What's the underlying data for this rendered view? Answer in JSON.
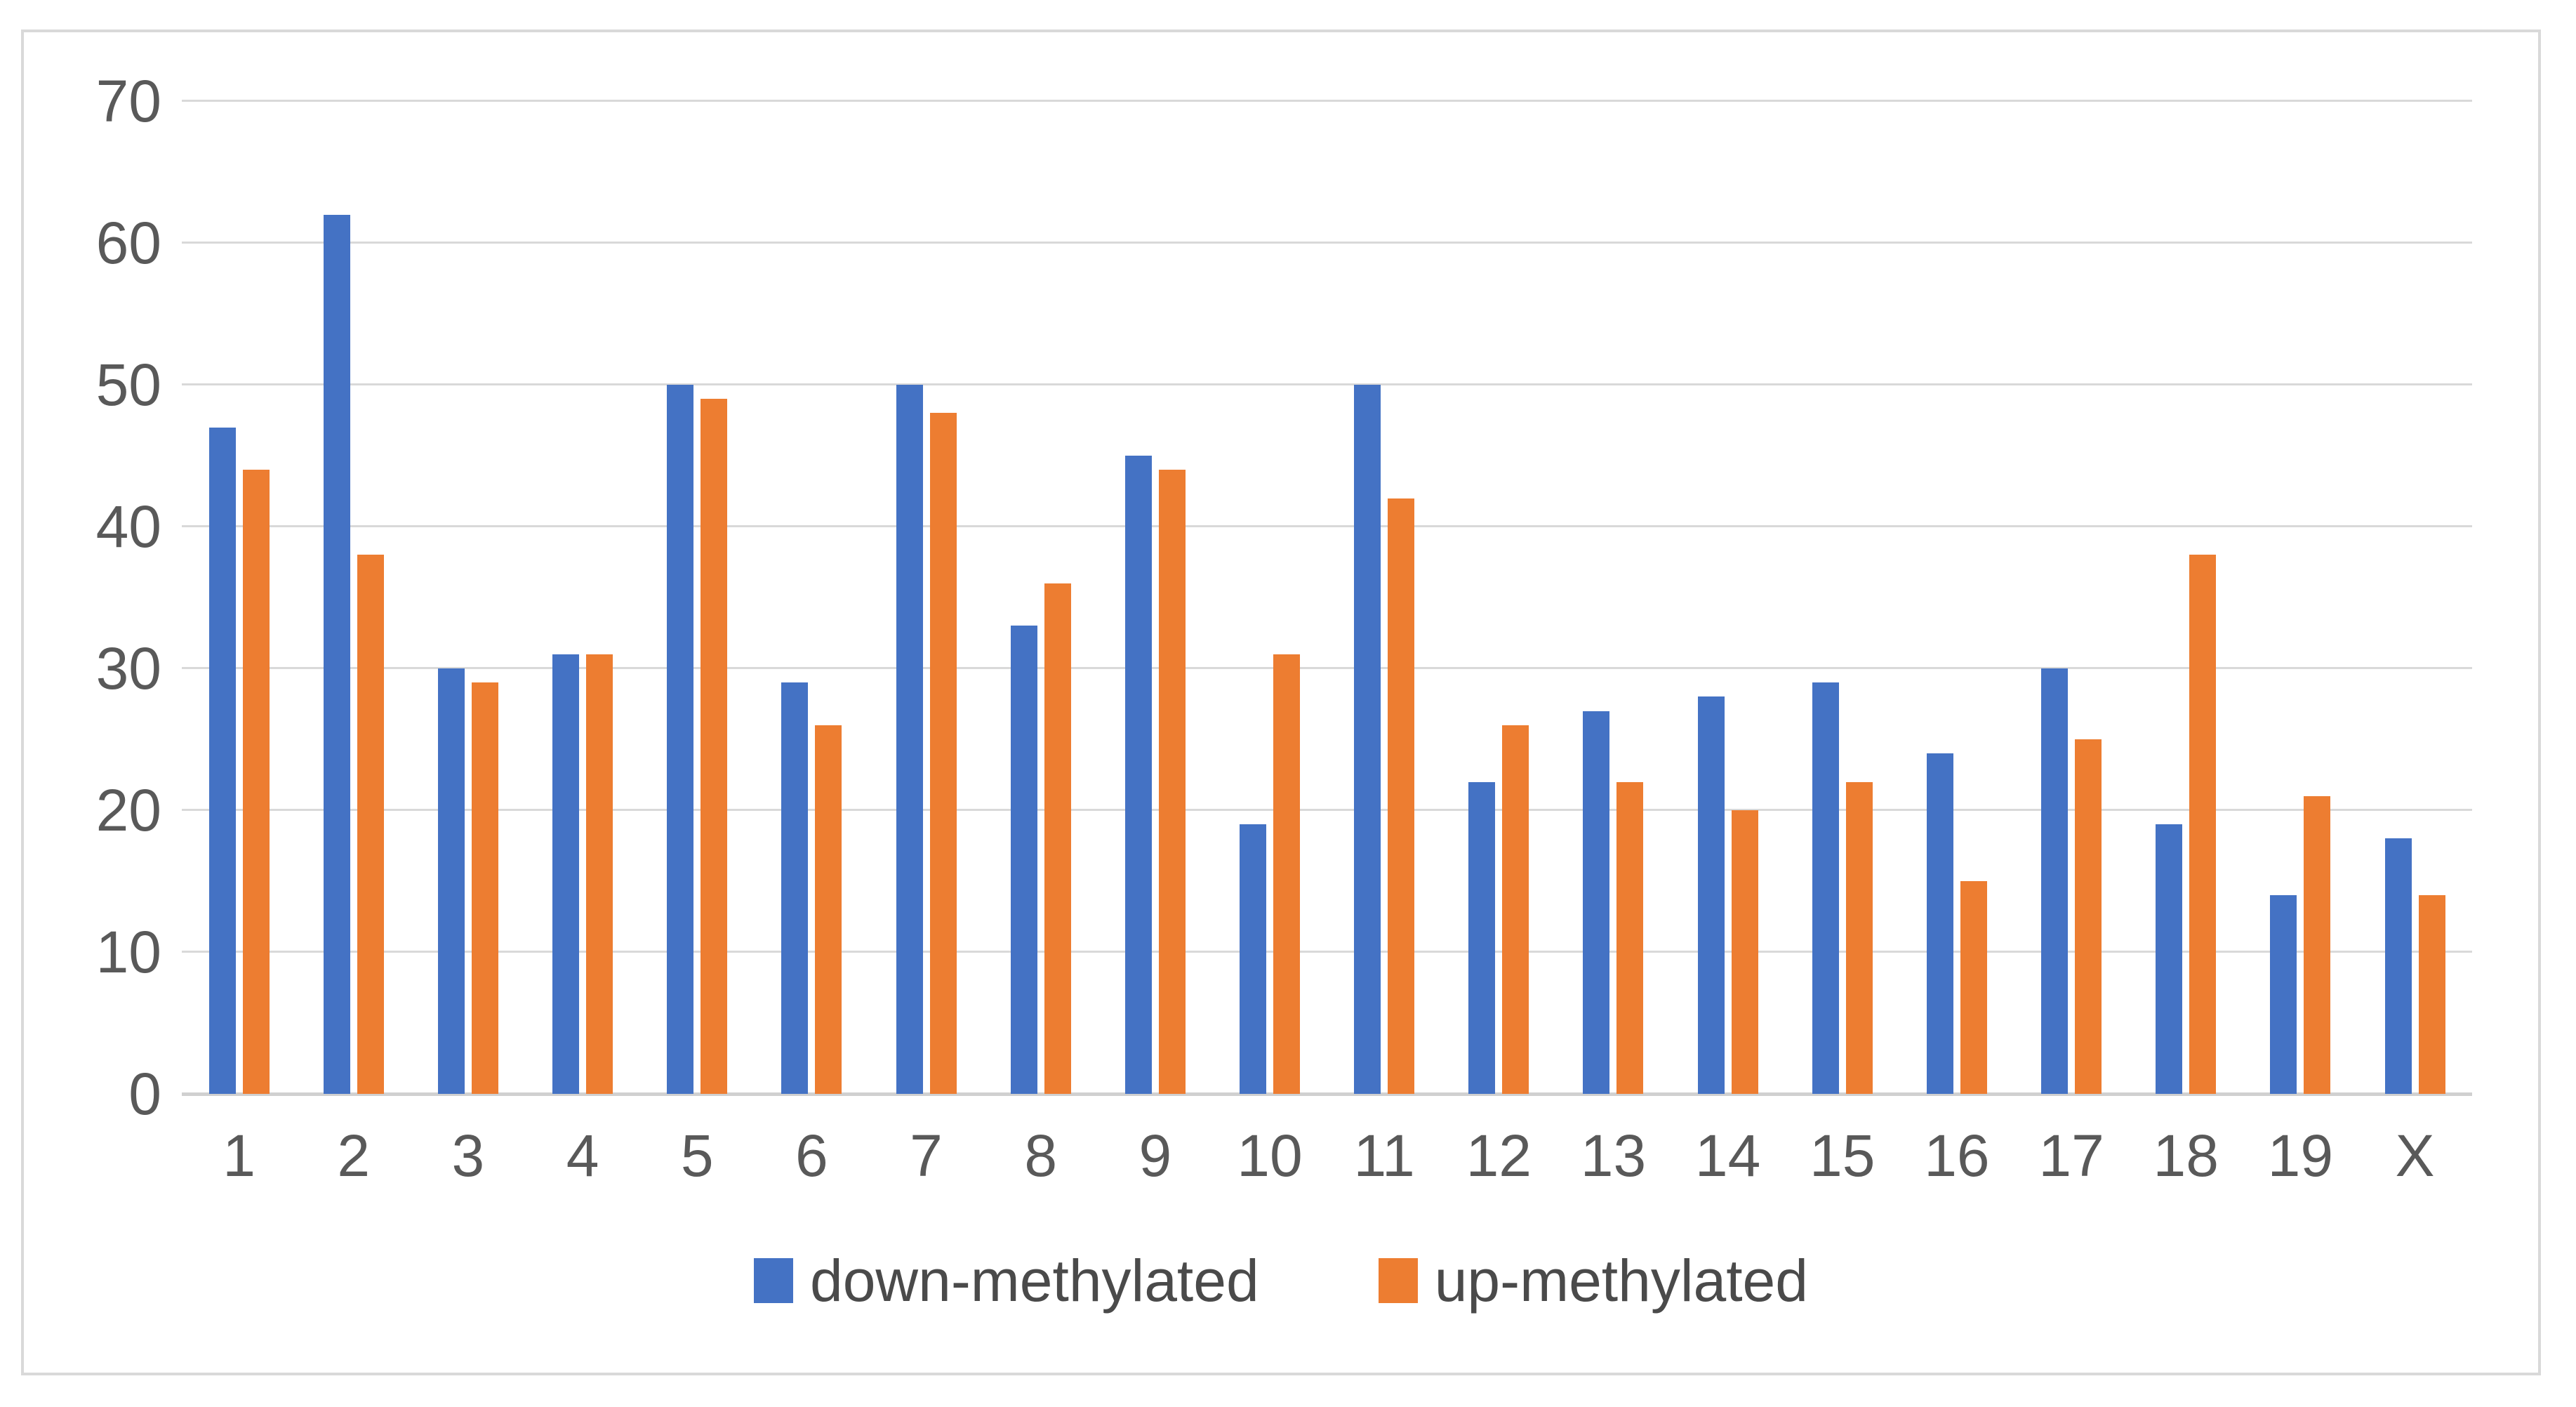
{
  "chart_data": {
    "type": "bar",
    "title": "",
    "xlabel": "",
    "ylabel": "",
    "categories": [
      "1",
      "2",
      "3",
      "4",
      "5",
      "6",
      "7",
      "8",
      "9",
      "10",
      "11",
      "12",
      "13",
      "14",
      "15",
      "16",
      "17",
      "18",
      "19",
      "X"
    ],
    "series": [
      {
        "name": "down-methylated",
        "color": "#4472C4",
        "values": [
          47,
          62,
          30,
          31,
          50,
          29,
          50,
          33,
          45,
          19,
          50,
          22,
          27,
          28,
          29,
          24,
          30,
          19,
          14,
          18
        ]
      },
      {
        "name": "up-methylated",
        "color": "#ED7D31",
        "values": [
          44,
          38,
          29,
          31,
          49,
          26,
          48,
          36,
          44,
          31,
          42,
          26,
          22,
          20,
          22,
          15,
          25,
          38,
          21,
          14
        ]
      }
    ],
    "ylim": [
      0,
      70
    ],
    "yticks": [
      0,
      10,
      20,
      30,
      40,
      50,
      60,
      70
    ],
    "grid": true,
    "legend_position": "bottom",
    "colors": {
      "gridline": "#d9d9d9",
      "axis_line": "#d0d0d0",
      "tick_label": "#595959",
      "legend_text": "#4a4a4a",
      "frame_border": "#d9d9d9",
      "background": "#ffffff"
    }
  }
}
